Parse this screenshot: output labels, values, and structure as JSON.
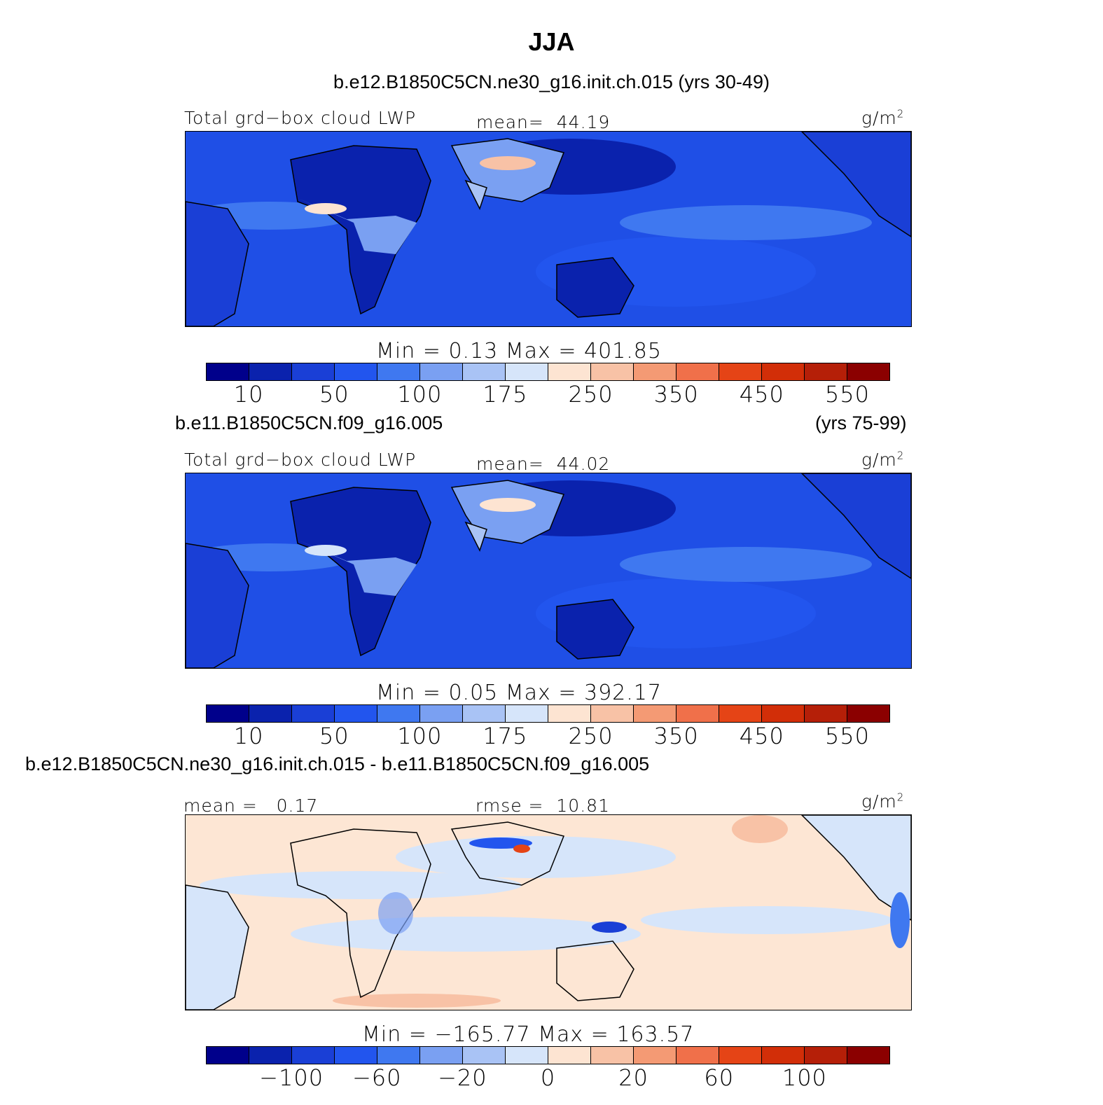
{
  "title": "JJA",
  "panels": [
    {
      "header_left": "b.e12.B1850C5CN.ne30_g16.init.ch.015 (yrs 30-49)",
      "header_right": "",
      "variable": "Total grd−box cloud LWP",
      "stat_label": "mean=",
      "stat_value": "44.19",
      "stat2_label": "",
      "stat2_value": "",
      "units": "g/m",
      "units_sup": "2",
      "minmax": "Min =    0.13  Max  =  401.85",
      "colorbar_ticks": [
        "10",
        "50",
        "100",
        "175",
        "250",
        "350",
        "450",
        "550"
      ]
    },
    {
      "header_left": "b.e11.B1850C5CN.f09_g16.005",
      "header_right": "(yrs 75-99)",
      "variable": "Total grd−box cloud LWP",
      "stat_label": "mean=",
      "stat_value": "44.02",
      "stat2_label": "",
      "stat2_value": "",
      "units": "g/m",
      "units_sup": "2",
      "minmax": "Min =    0.05  Max  =  392.17",
      "colorbar_ticks": [
        "10",
        "50",
        "100",
        "175",
        "250",
        "350",
        "450",
        "550"
      ]
    },
    {
      "header_left": "b.e12.B1850C5CN.ne30_g16.init.ch.015 - b.e11.B1850C5CN.f09_g16.005",
      "header_right": "",
      "variable": "",
      "stat_label": "mean =",
      "stat_value": "0.17",
      "stat2_label": "rmse =",
      "stat2_value": "10.81",
      "units": "g/m",
      "units_sup": "2",
      "minmax": "Min  = −165.77  Max  =  163.57",
      "colorbar_ticks": [
        "−100",
        "−60",
        "−20",
        "0",
        "20",
        "60",
        "100"
      ]
    }
  ],
  "colors": {
    "palette": [
      "#00008b",
      "#0a22ad",
      "#1a3fd6",
      "#2255ee",
      "#3f78f0",
      "#7aa0f2",
      "#a9c3f5",
      "#d6e5fa",
      "#fde4d2",
      "#f8c2a6",
      "#f49a74",
      "#f0704a",
      "#e54416",
      "#d22e08",
      "#b51f08",
      "#8b0000"
    ],
    "ocean_mean": "#1f4fe6",
    "diff_bg": "#fde6d4"
  }
}
